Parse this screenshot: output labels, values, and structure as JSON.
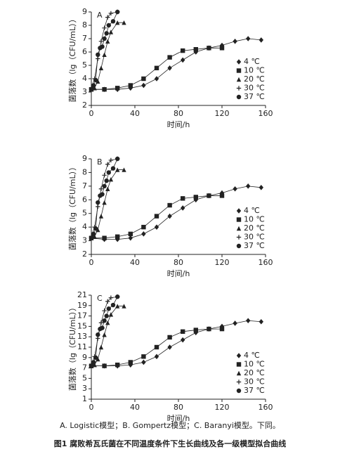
{
  "chart_data": [
    {
      "type": "line",
      "panel": "A",
      "xlabel": "时间/h",
      "ylabel": "菌落数（lg（CFU/mL））",
      "xlim": [
        0,
        160
      ],
      "xticks": [
        0,
        40,
        80,
        120,
        160
      ],
      "ylim": [
        2,
        9
      ],
      "yticks": [
        2,
        3,
        4,
        5,
        6,
        7,
        8,
        9
      ],
      "legend": "lower right",
      "series": [
        {
          "name": "4 ℃",
          "marker": "diamond",
          "color": "#222",
          "x": [
            0,
            12,
            24,
            36,
            48,
            60,
            72,
            84,
            96,
            108,
            120,
            132,
            144,
            156
          ],
          "values": [
            3.2,
            3.2,
            3.2,
            3.3,
            3.5,
            4.0,
            4.8,
            5.4,
            6.0,
            6.3,
            6.5,
            6.8,
            7.0,
            6.9
          ]
        },
        {
          "name": "10 ℃",
          "marker": "square",
          "color": "#222",
          "x": [
            0,
            12,
            24,
            36,
            48,
            60,
            72,
            84,
            96,
            108,
            120
          ],
          "values": [
            3.2,
            3.2,
            3.3,
            3.5,
            4.0,
            4.8,
            5.6,
            6.1,
            6.2,
            6.3,
            6.3
          ]
        },
        {
          "name": "20 ℃",
          "marker": "triangle",
          "color": "#222",
          "x": [
            0,
            3,
            6,
            9,
            12,
            15,
            18,
            24,
            30
          ],
          "values": [
            3.2,
            3.3,
            3.8,
            4.8,
            5.8,
            6.8,
            7.5,
            8.2,
            8.2
          ]
        },
        {
          "name": "30 ℃",
          "marker": "plus",
          "color": "#222",
          "x": [
            0,
            3,
            6,
            9,
            12,
            15,
            18,
            24
          ],
          "values": [
            3.3,
            4.0,
            5.5,
            6.8,
            7.8,
            8.6,
            8.9,
            9.0
          ]
        },
        {
          "name": "37 ℃",
          "marker": "circle",
          "color": "#222",
          "x": [
            0,
            2,
            4,
            6,
            8,
            10,
            12,
            14,
            16,
            20,
            24
          ],
          "values": [
            3.2,
            3.5,
            3.9,
            5.8,
            6.3,
            6.4,
            7.0,
            7.4,
            8.0,
            8.3,
            9.0
          ]
        }
      ]
    },
    {
      "type": "line",
      "panel": "B",
      "xlabel": "时间/h",
      "ylabel": "菌落数（lg（CFU/mL））",
      "xlim": [
        0,
        160
      ],
      "xticks": [
        0,
        40,
        80,
        120,
        160
      ],
      "ylim": [
        2,
        9
      ],
      "yticks": [
        2,
        3,
        4,
        5,
        6,
        7,
        8,
        9
      ],
      "legend": "lower right",
      "series": [
        {
          "name": "4 ℃",
          "marker": "diamond",
          "color": "#222",
          "x": [
            0,
            12,
            24,
            36,
            48,
            60,
            72,
            84,
            96,
            108,
            120,
            132,
            144,
            156
          ],
          "values": [
            3.2,
            3.1,
            3.1,
            3.2,
            3.5,
            4.0,
            4.8,
            5.4,
            6.0,
            6.3,
            6.5,
            6.8,
            7.0,
            6.9
          ]
        },
        {
          "name": "10 ℃",
          "marker": "square",
          "color": "#222",
          "x": [
            0,
            12,
            24,
            36,
            48,
            60,
            72,
            84,
            96,
            108,
            120
          ],
          "values": [
            3.2,
            3.2,
            3.3,
            3.5,
            4.0,
            4.8,
            5.6,
            6.1,
            6.2,
            6.3,
            6.3
          ]
        },
        {
          "name": "20 ℃",
          "marker": "triangle",
          "color": "#222",
          "x": [
            0,
            3,
            6,
            9,
            12,
            15,
            18,
            24,
            30
          ],
          "values": [
            3.2,
            3.3,
            3.8,
            4.8,
            5.8,
            6.8,
            7.5,
            8.2,
            8.2
          ]
        },
        {
          "name": "30 ℃",
          "marker": "plus",
          "color": "#222",
          "x": [
            0,
            3,
            6,
            9,
            12,
            15,
            18,
            24
          ],
          "values": [
            3.3,
            4.0,
            5.5,
            6.8,
            7.8,
            8.6,
            8.9,
            9.0
          ]
        },
        {
          "name": "37 ℃",
          "marker": "circle",
          "color": "#222",
          "x": [
            0,
            2,
            4,
            6,
            8,
            10,
            12,
            14,
            16,
            20,
            24
          ],
          "values": [
            3.2,
            3.5,
            3.9,
            5.8,
            6.3,
            6.4,
            7.0,
            7.4,
            8.0,
            8.3,
            9.0
          ]
        }
      ]
    },
    {
      "type": "line",
      "panel": "C",
      "xlabel": "时间/h",
      "ylabel": "菌落数（lg（CFU/mL））",
      "xlim": [
        0,
        160
      ],
      "xticks": [
        0,
        40,
        80,
        120,
        160
      ],
      "ylim": [
        1,
        21
      ],
      "yticks": [
        1,
        3,
        5,
        7,
        9,
        11,
        13,
        15,
        17,
        19,
        21
      ],
      "legend": "lower right",
      "series": [
        {
          "name": "4 ℃",
          "marker": "diamond",
          "color": "#222",
          "x": [
            0,
            12,
            24,
            36,
            48,
            60,
            72,
            84,
            96,
            108,
            120,
            132,
            144,
            156
          ],
          "values": [
            7.4,
            7.4,
            7.4,
            7.6,
            8.1,
            9.2,
            11.0,
            12.4,
            13.8,
            14.5,
            15.0,
            15.6,
            16.1,
            15.9
          ]
        },
        {
          "name": "10 ℃",
          "marker": "square",
          "color": "#222",
          "x": [
            0,
            12,
            24,
            36,
            48,
            60,
            72,
            84,
            96,
            108,
            120
          ],
          "values": [
            7.4,
            7.4,
            7.6,
            8.1,
            9.2,
            11.0,
            12.9,
            14.0,
            14.3,
            14.5,
            14.5
          ]
        },
        {
          "name": "20 ℃",
          "marker": "triangle",
          "color": "#222",
          "x": [
            0,
            3,
            6,
            9,
            12,
            15,
            18,
            24,
            30
          ],
          "values": [
            7.4,
            7.6,
            8.7,
            11.0,
            13.4,
            15.7,
            17.3,
            18.9,
            18.9
          ]
        },
        {
          "name": "30 ℃",
          "marker": "plus",
          "color": "#222",
          "x": [
            0,
            3,
            6,
            9,
            12,
            15,
            18,
            24
          ],
          "values": [
            7.6,
            9.2,
            12.7,
            15.7,
            18.0,
            19.8,
            20.5,
            20.7
          ]
        },
        {
          "name": "37 ℃",
          "marker": "circle",
          "color": "#222",
          "x": [
            0,
            2,
            4,
            6,
            8,
            10,
            12,
            14,
            16,
            20,
            24
          ],
          "values": [
            7.4,
            8.1,
            9.0,
            13.4,
            14.5,
            14.7,
            16.1,
            17.0,
            18.4,
            19.1,
            20.7
          ]
        }
      ]
    }
  ],
  "note": "A. Logistic模型；B. Gompertz模型；C. Baranyi模型。下同。",
  "caption": "图1    腐败希瓦氏菌在不同温度条件下生长曲线及各一级模型拟合曲线"
}
